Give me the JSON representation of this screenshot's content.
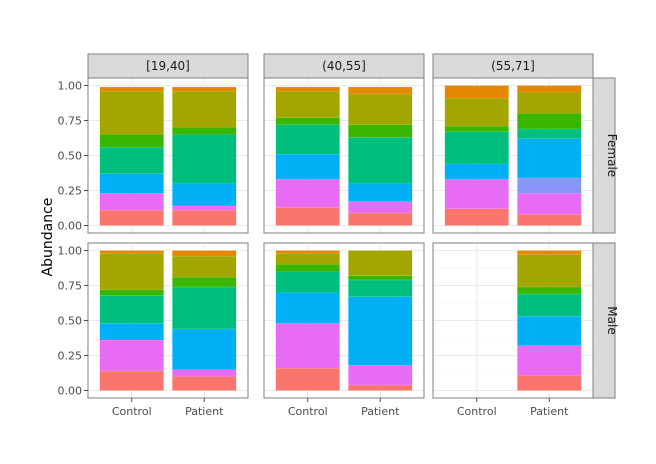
{
  "chart_data": {
    "type": "bar",
    "stacked": true,
    "ylabel": "Abundance",
    "xlabel": "",
    "ylim": [
      0,
      1
    ],
    "y_ticks": [
      "0.00",
      "0.25",
      "0.50",
      "0.75",
      "1.00"
    ],
    "categories": [
      "Control",
      "Patient"
    ],
    "facet_columns": [
      "[19,40]",
      "(40,55]",
      "(55,71]"
    ],
    "facet_rows": [
      "Female",
      "Male"
    ],
    "grid": true,
    "legend": "none",
    "palette": [
      "#f8766d",
      "#e76bf3",
      "#00b0f6",
      "#00bf7d",
      "#39b600",
      "#a3a500",
      "#e58700"
    ],
    "panels": [
      {
        "row": "Female",
        "col": "[19,40]",
        "bars": [
          {
            "category": "Control",
            "segments": [
              [
                0.11,
                "#f8766d"
              ],
              [
                0.12,
                "#e76bf3"
              ],
              [
                0.14,
                "#00b0f6"
              ],
              [
                0.19,
                "#00bf7d"
              ],
              [
                0.09,
                "#39b600"
              ],
              [
                0.31,
                "#a3a500"
              ],
              [
                0.03,
                "#e58700"
              ]
            ]
          },
          {
            "category": "Patient",
            "segments": [
              [
                0.11,
                "#f8766d"
              ],
              [
                0.03,
                "#e76bf3"
              ],
              [
                0.16,
                "#00b0f6"
              ],
              [
                0.35,
                "#00bf7d"
              ],
              [
                0.05,
                "#39b600"
              ],
              [
                0.26,
                "#a3a500"
              ],
              [
                0.03,
                "#e58700"
              ]
            ]
          }
        ]
      },
      {
        "row": "Female",
        "col": "(40,55]",
        "bars": [
          {
            "category": "Control",
            "segments": [
              [
                0.13,
                "#f8766d"
              ],
              [
                0.2,
                "#e76bf3"
              ],
              [
                0.18,
                "#00b0f6"
              ],
              [
                0.21,
                "#00bf7d"
              ],
              [
                0.05,
                "#39b600"
              ],
              [
                0.19,
                "#a3a500"
              ],
              [
                0.03,
                "#e58700"
              ]
            ]
          },
          {
            "category": "Patient",
            "segments": [
              [
                0.09,
                "#f8766d"
              ],
              [
                0.08,
                "#e76bf3"
              ],
              [
                0.13,
                "#00b0f6"
              ],
              [
                0.33,
                "#00bf7d"
              ],
              [
                0.09,
                "#39b600"
              ],
              [
                0.22,
                "#a3a500"
              ],
              [
                0.05,
                "#e58700"
              ]
            ]
          }
        ]
      },
      {
        "row": "Female",
        "col": "(55,71]",
        "bars": [
          {
            "category": "Control",
            "segments": [
              [
                0.12,
                "#f8766d"
              ],
              [
                0.21,
                "#e76bf3"
              ],
              [
                0.11,
                "#00b0f6"
              ],
              [
                0.23,
                "#00bf7d"
              ],
              [
                0.04,
                "#39b600"
              ],
              [
                0.2,
                "#a3a500"
              ],
              [
                0.09,
                "#e58700"
              ]
            ]
          },
          {
            "category": "Patient",
            "segments": [
              [
                0.08,
                "#f8766d"
              ],
              [
                0.15,
                "#e76bf3"
              ],
              [
                0.11,
                "#8796f7"
              ],
              [
                0.28,
                "#00b0f6"
              ],
              [
                0.07,
                "#00bf7d"
              ],
              [
                0.11,
                "#39b600"
              ],
              [
                0.15,
                "#a3a500"
              ],
              [
                0.05,
                "#e58700"
              ]
            ]
          }
        ]
      },
      {
        "row": "Male",
        "col": "[19,40]",
        "bars": [
          {
            "category": "Control",
            "segments": [
              [
                0.14,
                "#f8766d"
              ],
              [
                0.22,
                "#e76bf3"
              ],
              [
                0.12,
                "#00b0f6"
              ],
              [
                0.2,
                "#00bf7d"
              ],
              [
                0.04,
                "#39b600"
              ],
              [
                0.26,
                "#a3a500"
              ],
              [
                0.02,
                "#e58700"
              ]
            ]
          },
          {
            "category": "Patient",
            "segments": [
              [
                0.1,
                "#f8766d"
              ],
              [
                0.05,
                "#e76bf3"
              ],
              [
                0.29,
                "#00b0f6"
              ],
              [
                0.3,
                "#00bf7d"
              ],
              [
                0.07,
                "#39b600"
              ],
              [
                0.15,
                "#a3a500"
              ],
              [
                0.04,
                "#e58700"
              ]
            ]
          }
        ]
      },
      {
        "row": "Male",
        "col": "(40,55]",
        "bars": [
          {
            "category": "Control",
            "segments": [
              [
                0.16,
                "#f8766d"
              ],
              [
                0.32,
                "#e76bf3"
              ],
              [
                0.22,
                "#00b0f6"
              ],
              [
                0.15,
                "#00bf7d"
              ],
              [
                0.05,
                "#39b600"
              ],
              [
                0.08,
                "#a3a500"
              ],
              [
                0.02,
                "#e58700"
              ]
            ]
          },
          {
            "category": "Patient",
            "segments": [
              [
                0.04,
                "#f8766d"
              ],
              [
                0.14,
                "#e76bf3"
              ],
              [
                0.49,
                "#00b0f6"
              ],
              [
                0.12,
                "#00bf7d"
              ],
              [
                0.03,
                "#39b600"
              ],
              [
                0.18,
                "#a3a500"
              ]
            ]
          }
        ]
      },
      {
        "row": "Male",
        "col": "(55,71]",
        "bars": [
          {
            "category": "Patient",
            "segments": [
              [
                0.11,
                "#f8766d"
              ],
              [
                0.21,
                "#e76bf3"
              ],
              [
                0.21,
                "#00b0f6"
              ],
              [
                0.16,
                "#00bf7d"
              ],
              [
                0.05,
                "#39b600"
              ],
              [
                0.23,
                "#a3a500"
              ],
              [
                0.03,
                "#e58700"
              ]
            ]
          }
        ]
      }
    ]
  }
}
